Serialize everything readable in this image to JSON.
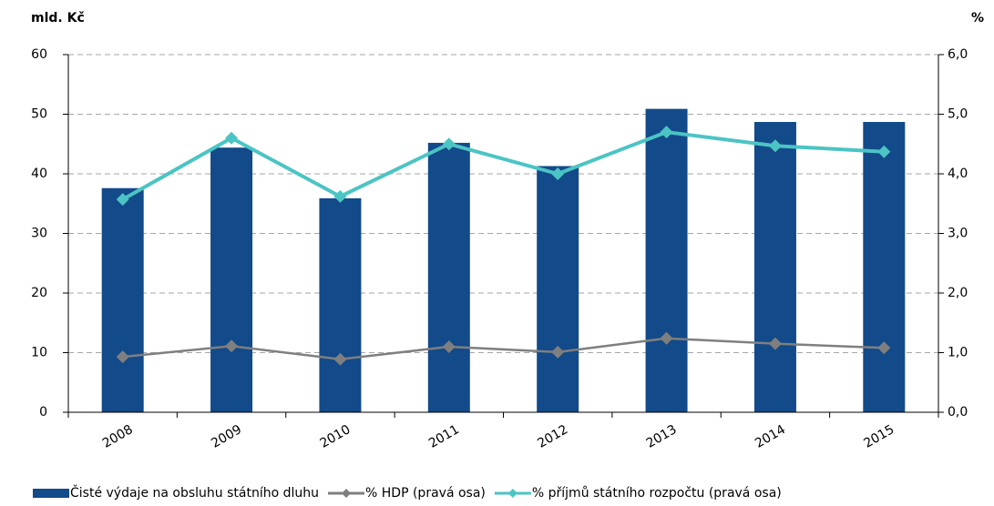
{
  "chart_data": {
    "type": "bar-line",
    "y_label": "mld. Kč",
    "y2_label": "%",
    "categories": [
      "2008",
      "2009",
      "2010",
      "2011",
      "2012",
      "2013",
      "2014",
      "2015"
    ],
    "series": [
      {
        "name": "Čisté výdaje na obsluhu státního dluhu",
        "type": "bar",
        "color": "#124a8a",
        "values": [
          37.6,
          44.4,
          35.9,
          45.2,
          41.3,
          50.9,
          48.7,
          48.7
        ]
      },
      {
        "name": "% HDP (pravá osa)",
        "type": "line",
        "axis": "y2",
        "color": "#7f7f7f",
        "values": [
          0.93,
          1.11,
          0.89,
          1.1,
          1.01,
          1.24,
          1.15,
          1.08
        ]
      },
      {
        "name": "% příjmů státního rozpočtu (pravá osa)",
        "type": "line",
        "axis": "y2",
        "color": "#4bc4c4",
        "values": [
          3.57,
          4.6,
          3.62,
          4.5,
          4.0,
          4.7,
          4.47,
          4.37
        ]
      }
    ],
    "ylim": [
      0,
      60
    ],
    "yticks": [
      0,
      10,
      20,
      30,
      40,
      50,
      60
    ],
    "y2lim": [
      0,
      6
    ],
    "y2ticks": [
      {
        "value": 0,
        "label": "0,0"
      },
      {
        "value": 1,
        "label": "1,0"
      },
      {
        "value": 2,
        "label": "2,0"
      },
      {
        "value": 3,
        "label": "3,0"
      },
      {
        "value": 4,
        "label": "4,0"
      },
      {
        "value": 5,
        "label": "5,0"
      },
      {
        "value": 6,
        "label": "6,0"
      }
    ],
    "grid": true,
    "legend": "bottom"
  }
}
